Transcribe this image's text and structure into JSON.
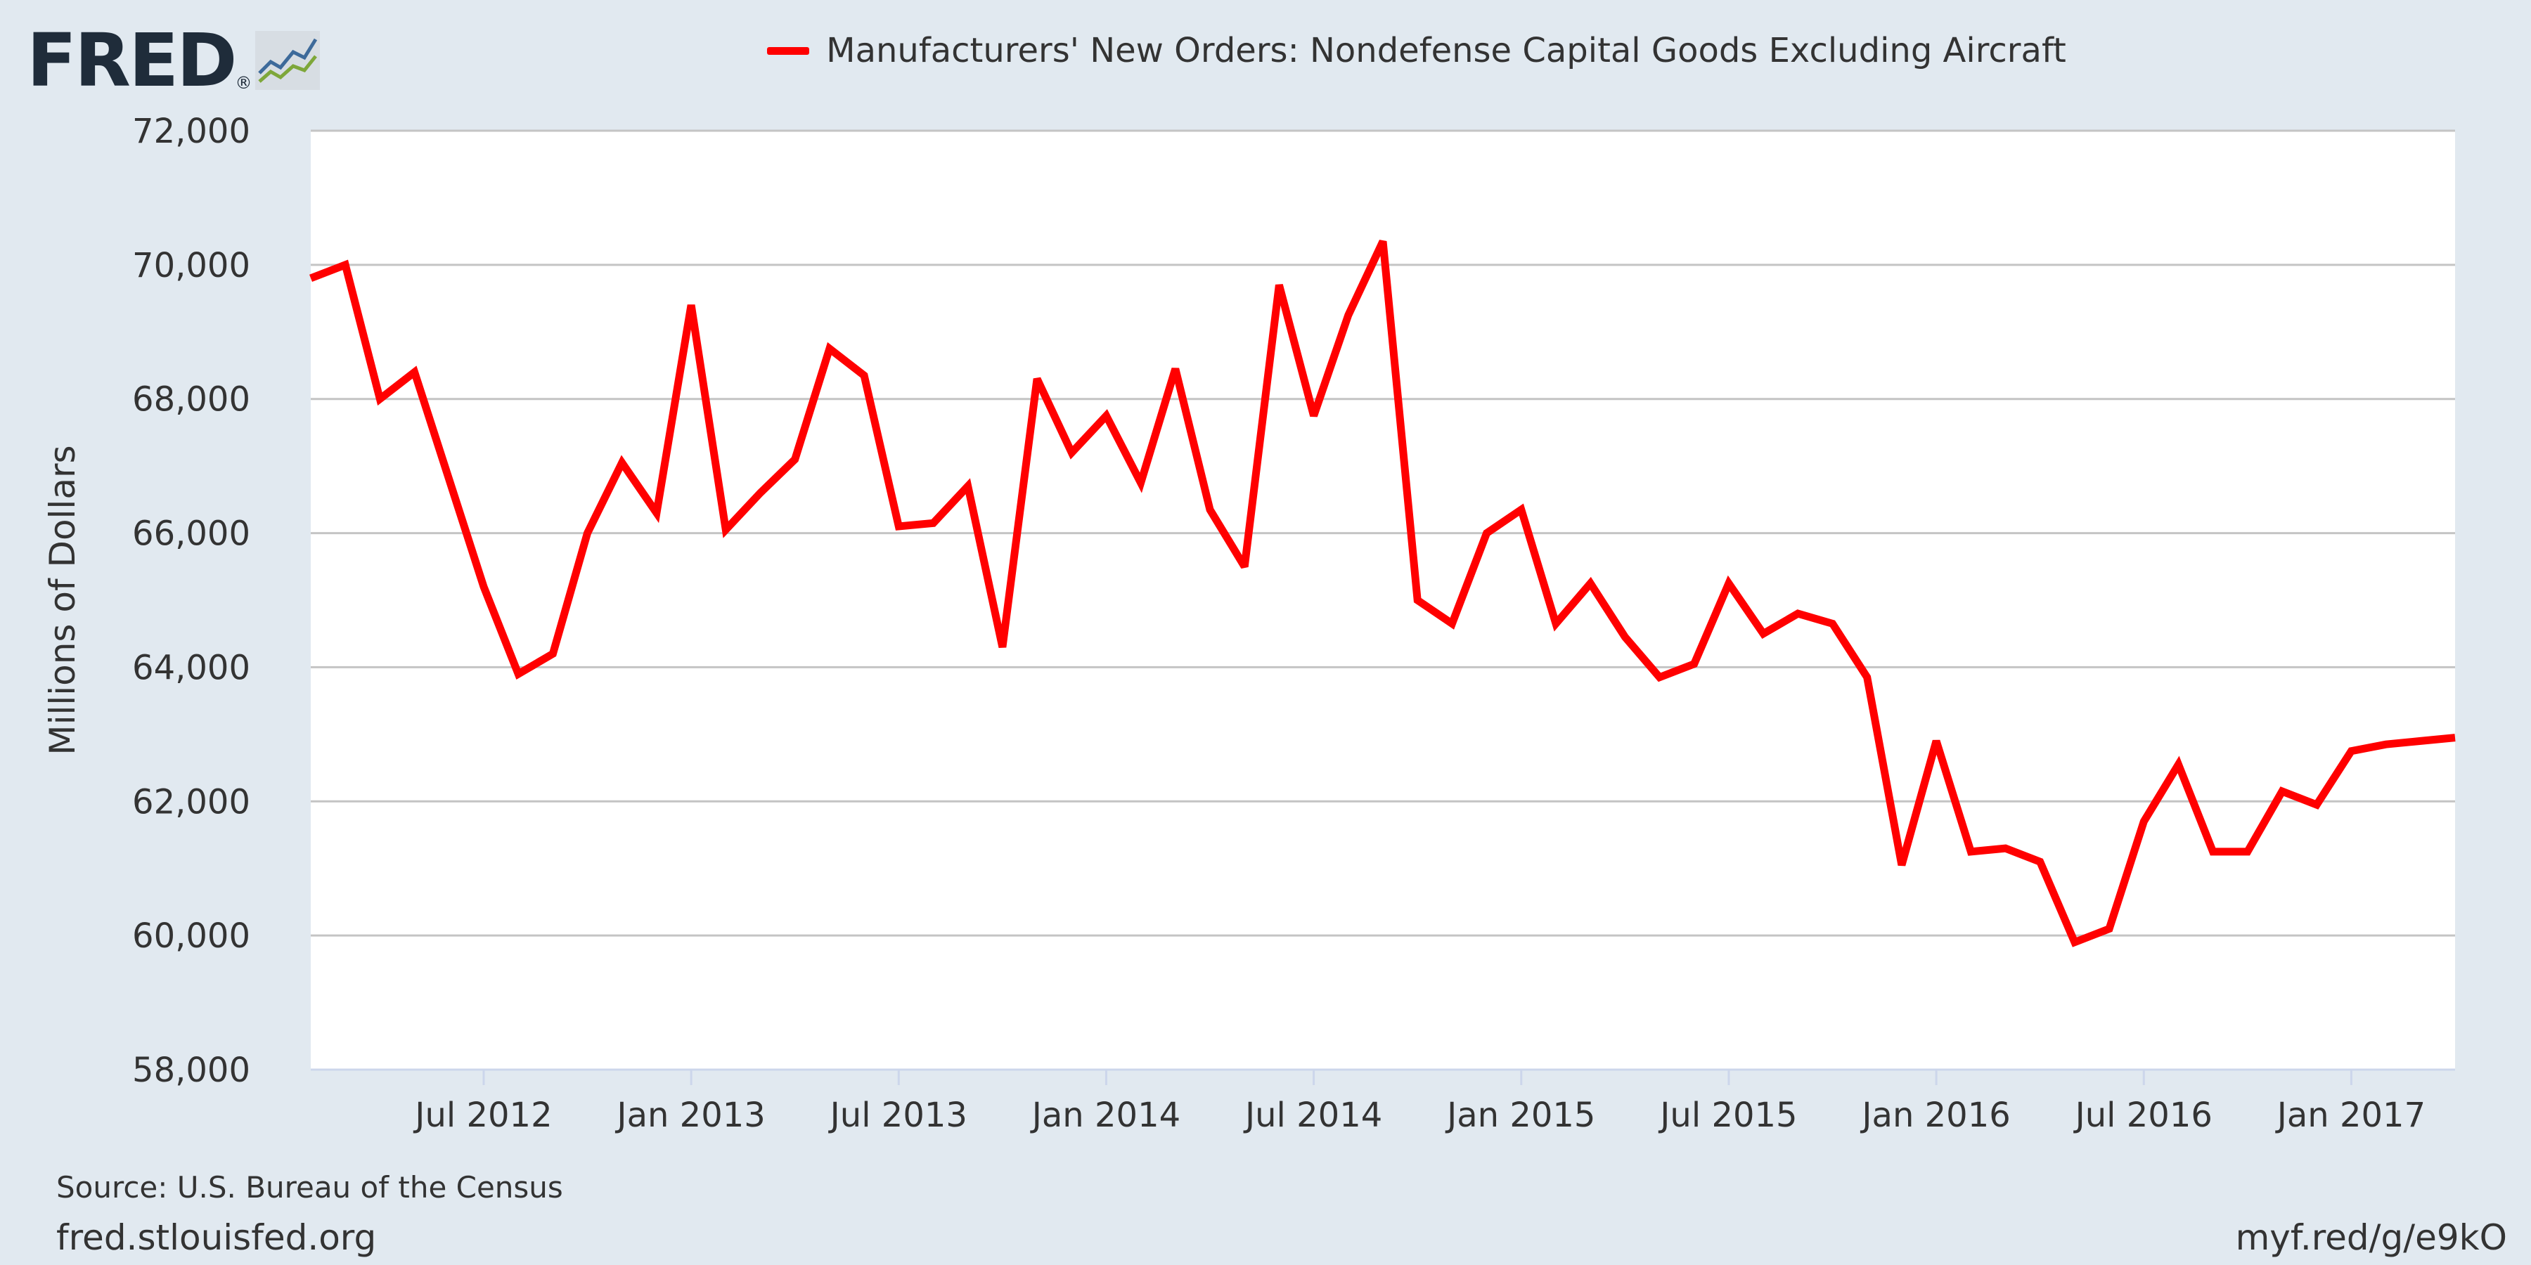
{
  "logo": {
    "text": "FRED",
    "reg": "®",
    "icon": "fred-graph-icon"
  },
  "legend": {
    "label": "Manufacturers' New Orders: Nondefense Capital Goods Excluding Aircraft"
  },
  "footer": {
    "source": "Source: U.S. Bureau of the Census",
    "site": "fred.stlouisfed.org",
    "short_link": "myf.red/g/e9kO"
  },
  "colors": {
    "background": "#e1e9f0",
    "plot_bg": "#ffffff",
    "series": "#ff0000",
    "grid": "#c4c4c4",
    "text": "#333333"
  },
  "chart_data": {
    "type": "line",
    "title": "",
    "xlabel": "",
    "ylabel": "Millions of Dollars",
    "ylim": [
      58000,
      72000
    ],
    "yticks": [
      "58,000",
      "60,000",
      "62,000",
      "64,000",
      "66,000",
      "68,000",
      "70,000",
      "72,000"
    ],
    "ytick_values": [
      58000,
      60000,
      62000,
      64000,
      66000,
      68000,
      70000,
      72000
    ],
    "xticks": [
      "Jul 2012",
      "Jan 2013",
      "Jul 2013",
      "Jan 2014",
      "Jul 2014",
      "Jan 2015",
      "Jul 2015",
      "Jan 2016",
      "Jul 2016",
      "Jan 2017"
    ],
    "xtick_dates": [
      "2012-07",
      "2013-01",
      "2013-07",
      "2014-01",
      "2014-07",
      "2015-01",
      "2015-07",
      "2016-01",
      "2016-07",
      "2017-01"
    ],
    "xlim": [
      "2012-02",
      "2017-04"
    ],
    "grid": true,
    "legend_position": "top-center",
    "series": [
      {
        "name": "Manufacturers' New Orders: Nondefense Capital Goods Excluding Aircraft",
        "x": [
          "2012-02",
          "2012-03",
          "2012-04",
          "2012-05",
          "2012-06",
          "2012-07",
          "2012-08",
          "2012-09",
          "2012-10",
          "2012-11",
          "2012-12",
          "2013-01",
          "2013-02",
          "2013-03",
          "2013-04",
          "2013-05",
          "2013-06",
          "2013-07",
          "2013-08",
          "2013-09",
          "2013-10",
          "2013-11",
          "2013-12",
          "2014-01",
          "2014-02",
          "2014-03",
          "2014-04",
          "2014-05",
          "2014-06",
          "2014-07",
          "2014-08",
          "2014-09",
          "2014-10",
          "2014-11",
          "2014-12",
          "2015-01",
          "2015-02",
          "2015-03",
          "2015-04",
          "2015-05",
          "2015-06",
          "2015-07",
          "2015-08",
          "2015-09",
          "2015-10",
          "2015-11",
          "2015-12",
          "2016-01",
          "2016-02",
          "2016-03",
          "2016-04",
          "2016-05",
          "2016-06",
          "2016-07",
          "2016-08",
          "2016-09",
          "2016-10",
          "2016-11",
          "2016-12",
          "2017-01",
          "2017-02",
          "2017-03",
          "2017-04"
        ],
        "values": [
          69800,
          70000,
          68000,
          68400,
          66800,
          65200,
          63900,
          64200,
          66000,
          67050,
          66300,
          69400,
          66050,
          66600,
          67100,
          68750,
          68350,
          66100,
          66150,
          66700,
          64300,
          68300,
          67200,
          67750,
          66750,
          68450,
          66350,
          65500,
          69700,
          67750,
          69250,
          70350,
          65000,
          64650,
          66000,
          66350,
          64650,
          65250,
          64450,
          63850,
          64050,
          65250,
          64500,
          64800,
          64650,
          63850,
          61050,
          62900,
          61250,
          61300,
          61100,
          59900,
          60100,
          61700,
          62550,
          61250,
          61250,
          62150,
          61950,
          62750,
          62850,
          62900,
          62950
        ]
      }
    ]
  }
}
